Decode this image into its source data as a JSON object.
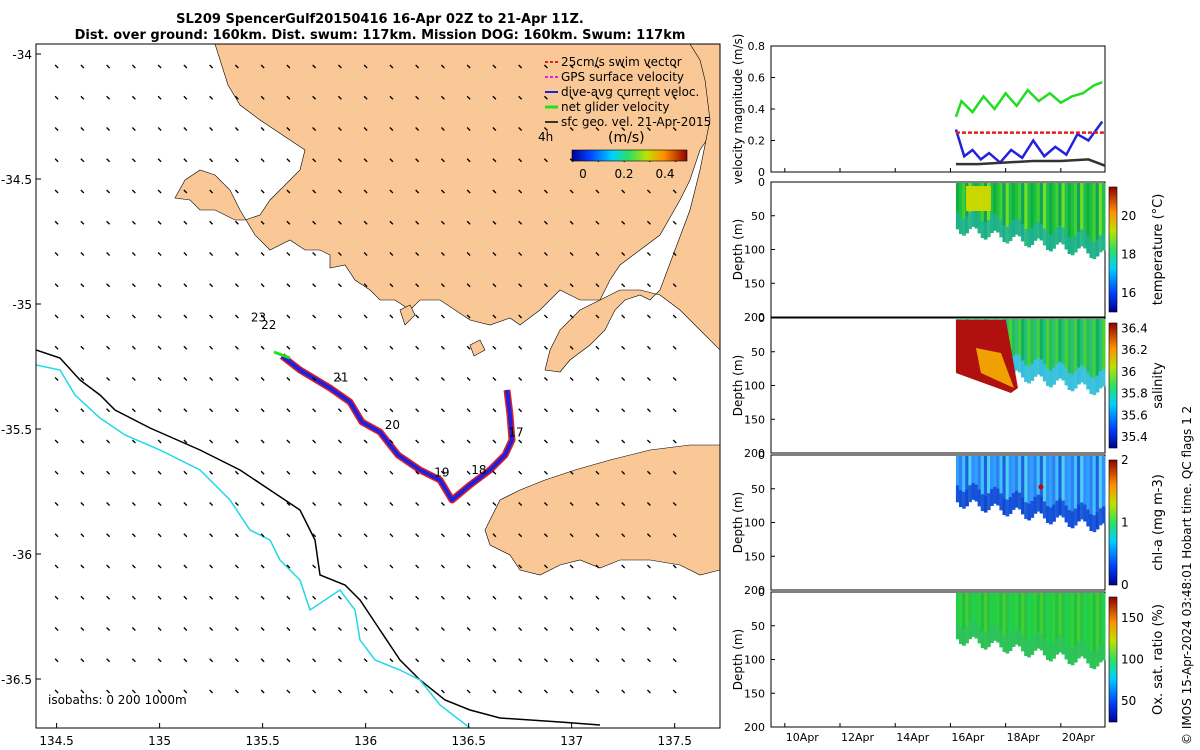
{
  "header": {
    "title_line1": "SL209 SpencerGulf20150416 16-Apr 02Z to 21-Apr 11Z.",
    "title_line2": "Dist. over ground: 160km. Dist. swum: 117km. Mission DOG: 160km. Swum: 117km"
  },
  "map": {
    "x_ticks": [
      "134.5",
      "135",
      "135.5",
      "136",
      "136.5",
      "137",
      "137.5"
    ],
    "y_ticks": [
      "-34",
      "-34.5",
      "-35",
      "-35.5",
      "-36",
      "-36.5"
    ],
    "legend": {
      "items": [
        "25cm/s swim vector",
        "GPS surface velocity",
        "dive-avg current veloc.",
        "net glider velocity",
        "sfc geo. vel. 21-Apr-2015"
      ],
      "colors": [
        "#e02020",
        "#e020e0",
        "#2020e0",
        "#20e020",
        "#000000"
      ],
      "interval": "4h",
      "colorbar_label": "(m/s)",
      "colorbar_ticks": [
        "0",
        "0.2",
        "0.4"
      ]
    },
    "isobaths_label": "isobaths: 0   200  1000m",
    "day_labels": [
      {
        "day": "23",
        "lon": 135.48,
        "lat": -35.07
      },
      {
        "day": "22",
        "lon": 135.53,
        "lat": -35.1
      },
      {
        "day": "21",
        "lon": 135.88,
        "lat": -35.31
      },
      {
        "day": "20",
        "lon": 136.13,
        "lat": -35.5
      },
      {
        "day": "19",
        "lon": 136.37,
        "lat": -35.69
      },
      {
        "day": "18",
        "lon": 136.55,
        "lat": -35.68
      },
      {
        "day": "17",
        "lon": 136.73,
        "lat": -35.53
      }
    ]
  },
  "chart_data": [
    {
      "type": "line",
      "title": "velocity magnitude time series",
      "ylabel": "velocity magnitude (m/s)",
      "ylim": [
        0,
        0.8
      ],
      "y_ticks": [
        "0",
        "0.2",
        "0.4",
        "0.6",
        "0.8"
      ],
      "x_ticks": [
        "10Apr",
        "12Apr",
        "14Apr",
        "16Apr",
        "18Apr",
        "20Apr"
      ],
      "xlim_days": [
        9.5,
        21.6
      ],
      "series": [
        {
          "name": "net glider velocity",
          "color": "#22dd22",
          "x": [
            16.2,
            16.4,
            16.8,
            17.2,
            17.6,
            18.0,
            18.4,
            18.8,
            19.2,
            19.6,
            20.0,
            20.4,
            20.8,
            21.2,
            21.5
          ],
          "values": [
            0.35,
            0.45,
            0.38,
            0.48,
            0.4,
            0.5,
            0.42,
            0.52,
            0.45,
            0.5,
            0.44,
            0.48,
            0.5,
            0.55,
            0.57
          ]
        },
        {
          "name": "dive-avg current veloc.",
          "color": "#2222dd",
          "x": [
            16.2,
            16.5,
            16.8,
            17.1,
            17.4,
            17.8,
            18.2,
            18.6,
            19.0,
            19.4,
            19.8,
            20.2,
            20.6,
            21.0,
            21.5
          ],
          "values": [
            0.27,
            0.1,
            0.14,
            0.08,
            0.12,
            0.06,
            0.14,
            0.09,
            0.2,
            0.1,
            0.16,
            0.11,
            0.24,
            0.2,
            0.32
          ]
        },
        {
          "name": "25cm/s swim vector",
          "color": "#dd2222",
          "x": [
            16.2,
            21.6
          ],
          "values": [
            0.25,
            0.25
          ]
        },
        {
          "name": "sfc geo. vel.",
          "color": "#333333",
          "x": [
            16.2,
            17,
            18,
            19,
            20,
            21,
            21.6
          ],
          "values": [
            0.05,
            0.05,
            0.06,
            0.07,
            0.07,
            0.08,
            0.04
          ]
        }
      ]
    },
    {
      "type": "heatmap",
      "ylabel": "Depth (m)",
      "colorbar_label": "temperature (°C)",
      "colorbar_ticks": [
        "16",
        "18",
        "20"
      ],
      "ylim": [
        200,
        0
      ],
      "y_ticks": [
        "0",
        "50",
        "100",
        "150",
        "200"
      ],
      "clim": [
        15,
        21.5
      ]
    },
    {
      "type": "heatmap",
      "ylabel": "Depth (m)",
      "colorbar_label": "salinity",
      "colorbar_ticks": [
        "35.4",
        "35.6",
        "35.8",
        "36",
        "36.2",
        "36.4"
      ],
      "ylim": [
        200,
        0
      ],
      "y_ticks": [
        "0",
        "50",
        "100",
        "150",
        "200"
      ],
      "clim": [
        35.3,
        36.45
      ]
    },
    {
      "type": "heatmap",
      "ylabel": "Depth (m)",
      "colorbar_label": "chl-a (mg m-3)",
      "colorbar_ticks": [
        "0",
        "1",
        "2"
      ],
      "ylim": [
        200,
        0
      ],
      "y_ticks": [
        "0",
        "50",
        "100",
        "150",
        "200"
      ],
      "clim": [
        0,
        2
      ]
    },
    {
      "type": "heatmap",
      "ylabel": "Depth (m)",
      "colorbar_label": "Ox. sat. ratio (%)",
      "colorbar_ticks": [
        "50",
        "100",
        "150"
      ],
      "ylim": [
        200,
        0
      ],
      "y_ticks": [
        "0",
        "50",
        "100",
        "150",
        "200"
      ],
      "clim": [
        25,
        175
      ]
    }
  ],
  "credit": "© IMOS 15-Apr-2024 03:48:01 Hobart time. QC flags 1  2"
}
